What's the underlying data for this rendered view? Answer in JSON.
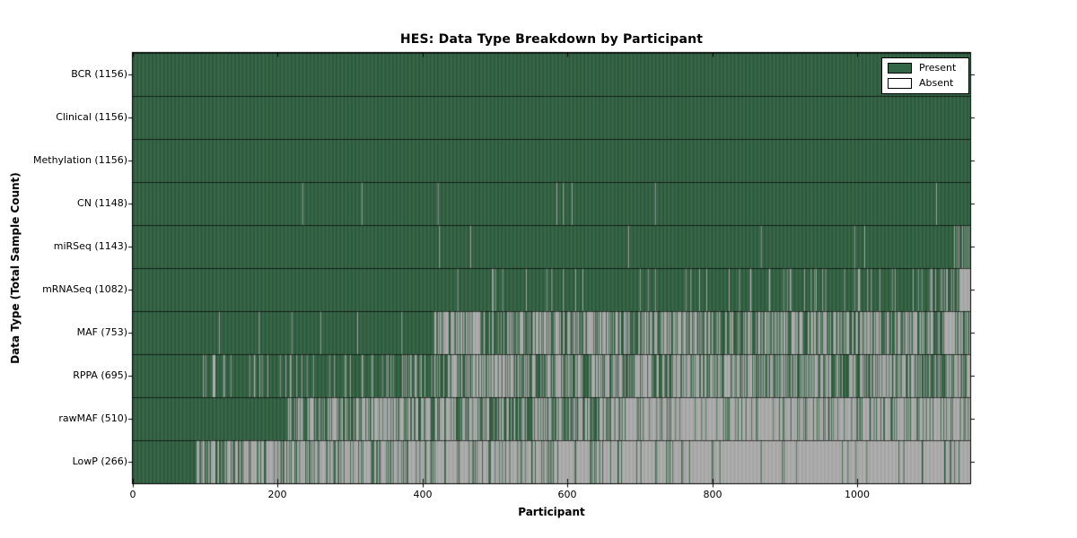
{
  "chart_data": {
    "type": "heatmap",
    "title": "HES: Data Type Breakdown by Participant",
    "xlabel": "Participant",
    "ylabel": "Data Type (Total Sample Count)",
    "n_participants": 1156,
    "xlim": [
      0,
      1156
    ],
    "x_ticks": [
      0,
      200,
      400,
      600,
      800,
      1000
    ],
    "x_tick_labels": [
      "0",
      "200",
      "400",
      "600",
      "800",
      "1000"
    ],
    "grid": false,
    "legend": {
      "position": "upper right",
      "entries": [
        {
          "label": "Present",
          "color": "#336644"
        },
        {
          "label": "Absent",
          "color": "#ffffff"
        }
      ]
    },
    "colors": {
      "present": "#336644",
      "absent_legend": "#ffffff",
      "absent_rendered": "#b9b9b9",
      "edge": "#000000"
    },
    "rows": [
      {
        "name": "BCR",
        "total": 1156,
        "label": "BCR (1156)",
        "segments": [
          [
            0,
            1156,
            1.0
          ]
        ]
      },
      {
        "name": "Clinical",
        "total": 1156,
        "label": "Clinical (1156)",
        "segments": [
          [
            0,
            1156,
            1.0
          ]
        ]
      },
      {
        "name": "Methylation",
        "total": 1156,
        "label": "Methylation (1156)",
        "segments": [
          [
            0,
            1156,
            1.0
          ]
        ]
      },
      {
        "name": "CN",
        "total": 1148,
        "label": "CN (1148)",
        "segments": [
          [
            0,
            1156,
            1.0
          ]
        ],
        "absent_indices": [
          234,
          316,
          421,
          585,
          594,
          606,
          721,
          1109
        ]
      },
      {
        "name": "miRSeq",
        "total": 1143,
        "label": "miRSeq (1143)",
        "segments": [
          [
            0,
            1156,
            1.0
          ]
        ],
        "absent_indices": [
          423,
          466,
          684,
          867,
          996,
          1010,
          1134,
          1137,
          1140,
          1145,
          1148,
          1151,
          1154
        ]
      },
      {
        "name": "mRNASeq",
        "total": 1082,
        "label": "mRNASeq (1082)",
        "segments": [
          [
            0,
            428,
            1.0
          ],
          [
            428,
            700,
            0.96
          ],
          [
            700,
            900,
            0.93
          ],
          [
            900,
            1100,
            0.89
          ],
          [
            1100,
            1141,
            0.7
          ],
          [
            1141,
            1156,
            0.0
          ]
        ]
      },
      {
        "name": "MAF",
        "total": 753,
        "label": "MAF (753)",
        "segments": [
          [
            0,
            415,
            0.9855
          ],
          [
            415,
            480,
            0.3
          ],
          [
            480,
            530,
            0.7
          ],
          [
            530,
            1156,
            0.463
          ]
        ]
      },
      {
        "name": "RPPA",
        "total": 695,
        "label": "RPPA (695)",
        "segments": [
          [
            0,
            97,
            1.0
          ],
          [
            97,
            350,
            0.87
          ],
          [
            350,
            430,
            0.72
          ],
          [
            430,
            1156,
            0.441
          ]
        ]
      },
      {
        "name": "rawMAF",
        "total": 510,
        "label": "rawMAF (510)",
        "segments": [
          [
            0,
            214,
            1.0
          ],
          [
            214,
            660,
            0.455
          ],
          [
            660,
            1156,
            0.1875
          ]
        ]
      },
      {
        "name": "LowP",
        "total": 266,
        "label": "LowP (266)",
        "segments": [
          [
            0,
            87,
            1.0
          ],
          [
            87,
            250,
            0.345
          ],
          [
            250,
            620,
            0.217
          ],
          [
            620,
            1156,
            0.08
          ]
        ]
      }
    ]
  }
}
